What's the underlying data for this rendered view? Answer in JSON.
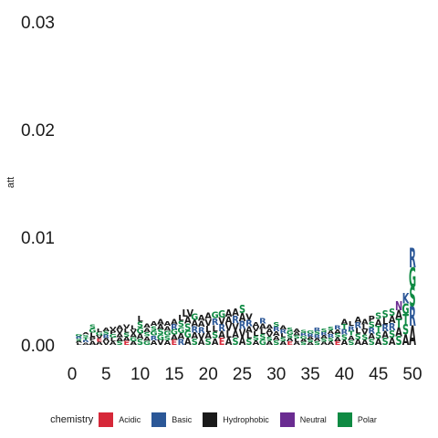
{
  "chart_data": {
    "type": "sequence-logo",
    "xlabel": "",
    "ylabel": "att",
    "xlim": [
      0,
      50
    ],
    "ylim": [
      0,
      0.03
    ],
    "x_ticks": [
      "0",
      "5",
      "10",
      "15",
      "20",
      "25",
      "30",
      "35",
      "40",
      "45",
      "50"
    ],
    "y_ticks": [
      "0.00",
      "0.01",
      "0.02",
      "0.03"
    ],
    "legend": {
      "title": "chemistry",
      "position": "bottom",
      "items": [
        {
          "name": "Acidic",
          "color": "#d62839"
        },
        {
          "name": "Basic",
          "color": "#2b5797"
        },
        {
          "name": "Hydrophobic",
          "color": "#1a1a1a"
        },
        {
          "name": "Neutral",
          "color": "#6a2c91"
        },
        {
          "name": "Polar",
          "color": "#0f8a43"
        }
      ]
    },
    "positions": [
      {
        "x": 1,
        "total": 0.001,
        "stack": [
          "L",
          "A",
          "S",
          "R",
          "G"
        ]
      },
      {
        "x": 2,
        "total": 0.0012,
        "stack": [
          "A",
          "R",
          "T",
          "S",
          "A"
        ]
      },
      {
        "x": 3,
        "total": 0.0019,
        "stack": [
          "A",
          "P",
          "L",
          "G",
          "S"
        ]
      },
      {
        "x": 4,
        "total": 0.0015,
        "stack": [
          "A",
          "E",
          "V",
          "G",
          "L"
        ]
      },
      {
        "x": 5,
        "total": 0.0016,
        "stack": [
          "V",
          "A",
          "R",
          "S",
          "A"
        ]
      },
      {
        "x": 6,
        "total": 0.0017,
        "stack": [
          "A",
          "L",
          "G",
          "P",
          "V"
        ]
      },
      {
        "x": 7,
        "total": 0.0018,
        "stack": [
          "S",
          "A",
          "A",
          "V",
          "A"
        ]
      },
      {
        "x": 8,
        "total": 0.0019,
        "stack": [
          "E",
          "A",
          "S",
          "L",
          "V"
        ]
      },
      {
        "x": 9,
        "total": 0.0018,
        "stack": [
          "A",
          "G",
          "A",
          "V",
          "L"
        ]
      },
      {
        "x": 10,
        "total": 0.0027,
        "stack": [
          "S",
          "A",
          "G",
          "S",
          "L"
        ]
      },
      {
        "x": 11,
        "total": 0.002,
        "stack": [
          "G",
          "A",
          "S",
          "A",
          "A"
        ]
      },
      {
        "x": 12,
        "total": 0.0022,
        "stack": [
          "A",
          "R",
          "G",
          "S",
          "A"
        ]
      },
      {
        "x": 13,
        "total": 0.0024,
        "stack": [
          "V",
          "G",
          "S",
          "A",
          "A"
        ]
      },
      {
        "x": 14,
        "total": 0.0022,
        "stack": [
          "A",
          "S",
          "G",
          "A",
          "A"
        ]
      },
      {
        "x": 15,
        "total": 0.0024,
        "stack": [
          "E",
          "A",
          "G",
          "R",
          "A"
        ]
      },
      {
        "x": 16,
        "total": 0.0028,
        "stack": [
          "R",
          "A",
          "G",
          "S",
          "L"
        ]
      },
      {
        "x": 17,
        "total": 0.0033,
        "stack": [
          "A",
          "G",
          "S",
          "A",
          "LV"
        ]
      },
      {
        "x": 18,
        "total": 0.0029,
        "stack": [
          "S",
          "A",
          "R",
          "A",
          "G"
        ]
      },
      {
        "x": 19,
        "total": 0.0028,
        "stack": [
          "A",
          "V",
          "R",
          "A",
          "A"
        ]
      },
      {
        "x": 20,
        "total": 0.003,
        "stack": [
          "S",
          "A",
          "L",
          "V",
          "A"
        ]
      },
      {
        "x": 21,
        "total": 0.0031,
        "stack": [
          "A",
          "S",
          "L",
          "R",
          "G"
        ]
      },
      {
        "x": 22,
        "total": 0.0032,
        "stack": [
          "E",
          "A",
          "R",
          "V",
          "G"
        ]
      },
      {
        "x": 23,
        "total": 0.0033,
        "stack": [
          "A",
          "L",
          "V",
          "A",
          "A"
        ]
      },
      {
        "x": 24,
        "total": 0.0034,
        "stack": [
          "S",
          "A",
          "V",
          "R",
          "A"
        ]
      },
      {
        "x": 25,
        "total": 0.0037,
        "stack": [
          "A",
          "V",
          "R",
          "A",
          "S"
        ]
      },
      {
        "x": 26,
        "total": 0.0029,
        "stack": [
          "S",
          "L",
          "A",
          "R",
          "V"
        ]
      },
      {
        "x": 27,
        "total": 0.0021,
        "stack": [
          "A",
          "S",
          "L",
          "V",
          "A"
        ]
      },
      {
        "x": 28,
        "total": 0.0025,
        "stack": [
          "G",
          "S",
          "L",
          "A",
          "R"
        ]
      },
      {
        "x": 29,
        "total": 0.0019,
        "stack": [
          "A",
          "S",
          "V",
          "A",
          "A"
        ]
      },
      {
        "x": 30,
        "total": 0.0021,
        "stack": [
          "S",
          "A",
          "A",
          "R",
          "S"
        ]
      },
      {
        "x": 31,
        "total": 0.0018,
        "stack": [
          "A",
          "S",
          "L",
          "R",
          "A"
        ]
      },
      {
        "x": 32,
        "total": 0.0016,
        "stack": [
          "E",
          "A",
          "S",
          "G",
          "S"
        ]
      },
      {
        "x": 33,
        "total": 0.0015,
        "stack": [
          "A",
          "L",
          "S",
          "A",
          "A"
        ]
      },
      {
        "x": 34,
        "total": 0.0014,
        "stack": [
          "S",
          "A",
          "G",
          "R",
          "S"
        ]
      },
      {
        "x": 35,
        "total": 0.0013,
        "stack": [
          "A",
          "S",
          "A",
          "R",
          "G"
        ]
      },
      {
        "x": 36,
        "total": 0.0016,
        "stack": [
          "S",
          "A",
          "R",
          "S",
          "R"
        ]
      },
      {
        "x": 37,
        "total": 0.0015,
        "stack": [
          "A",
          "S",
          "A",
          "R",
          "S"
        ]
      },
      {
        "x": 38,
        "total": 0.0017,
        "stack": [
          "A",
          "S",
          "R",
          "A",
          "S"
        ]
      },
      {
        "x": 39,
        "total": 0.0018,
        "stack": [
          "E",
          "A",
          "S",
          "A",
          "R"
        ]
      },
      {
        "x": 40,
        "total": 0.0024,
        "stack": [
          "A",
          "S",
          "R",
          "T",
          "A"
        ]
      },
      {
        "x": 41,
        "total": 0.0022,
        "stack": [
          "S",
          "A",
          "T",
          "R",
          "L"
        ]
      },
      {
        "x": 42,
        "total": 0.0026,
        "stack": [
          "A",
          "S",
          "L",
          "R",
          "A"
        ]
      },
      {
        "x": 43,
        "total": 0.0024,
        "stack": [
          "A",
          "S",
          "V",
          "L",
          "A"
        ]
      },
      {
        "x": 44,
        "total": 0.0027,
        "stack": [
          "S",
          "A",
          "R",
          "S",
          "P"
        ]
      },
      {
        "x": 45,
        "total": 0.003,
        "stack": [
          "A",
          "S",
          "T",
          "A",
          "S"
        ]
      },
      {
        "x": 46,
        "total": 0.0032,
        "stack": [
          "S",
          "A",
          "R",
          "L",
          "S"
        ]
      },
      {
        "x": 47,
        "total": 0.0034,
        "stack": [
          "A",
          "S",
          "R",
          "A",
          "S"
        ]
      },
      {
        "x": 48,
        "total": 0.004,
        "stack": [
          "S",
          "A",
          "T",
          "A",
          "N"
        ]
      },
      {
        "x": 49,
        "total": 0.0048,
        "stack": [
          "A",
          "S",
          "T",
          "G",
          "K"
        ]
      },
      {
        "x": 50,
        "total": 0.009,
        "stack": [
          "A",
          "R",
          "S",
          "G",
          "R"
        ]
      }
    ]
  }
}
